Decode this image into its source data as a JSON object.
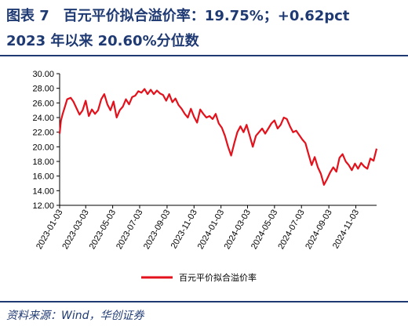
{
  "header": {
    "title_line1": "图表 7　百元平价拟合溢价率：19.75%；+0.62pct",
    "title_line2": "2023 年以来 20.60%分位数"
  },
  "footer": {
    "source": "资料来源：Wind，华创证券"
  },
  "colors": {
    "title": "#1f3a73",
    "line": "#e3111b"
  },
  "chart_data": {
    "type": "line",
    "title": "",
    "xlabel": "",
    "ylabel": "",
    "ylim": [
      12,
      30
    ],
    "yticks": [
      12,
      14,
      16,
      18,
      20,
      22,
      24,
      26,
      28,
      30
    ],
    "ytick_labels": [
      "12.00",
      "14.00",
      "16.00",
      "18.00",
      "20.00",
      "22.00",
      "24.00",
      "26.00",
      "28.00",
      "30.00"
    ],
    "xlim": [
      "2023-01-03",
      "2024-12-20"
    ],
    "xticks": [
      "2023-01-03",
      "2023-03-03",
      "2023-05-03",
      "2023-07-03",
      "2023-09-03",
      "2023-11-03",
      "2024-01-03",
      "2024-03-03",
      "2024-05-03",
      "2024-07-03",
      "2024-09-03",
      "2024-11-03"
    ],
    "grid": false,
    "legend": "bottom",
    "series": [
      {
        "name": "百元平价拟合溢价率",
        "x": [
          "2023-01-03",
          "2023-01-06",
          "2023-01-10",
          "2023-01-15",
          "2023-01-20",
          "2023-01-28",
          "2023-02-03",
          "2023-02-10",
          "2023-02-17",
          "2023-02-24",
          "2023-03-03",
          "2023-03-10",
          "2023-03-17",
          "2023-03-24",
          "2023-03-31",
          "2023-04-07",
          "2023-04-14",
          "2023-04-21",
          "2023-04-28",
          "2023-05-05",
          "2023-05-12",
          "2023-05-19",
          "2023-05-26",
          "2023-06-02",
          "2023-06-09",
          "2023-06-16",
          "2023-06-23",
          "2023-06-30",
          "2023-07-07",
          "2023-07-14",
          "2023-07-21",
          "2023-07-28",
          "2023-08-04",
          "2023-08-11",
          "2023-08-18",
          "2023-08-25",
          "2023-09-01",
          "2023-09-08",
          "2023-09-15",
          "2023-09-22",
          "2023-09-29",
          "2023-10-06",
          "2023-10-13",
          "2023-10-20",
          "2023-10-27",
          "2023-11-03",
          "2023-11-10",
          "2023-11-17",
          "2023-11-24",
          "2023-12-01",
          "2023-12-08",
          "2023-12-15",
          "2023-12-22",
          "2023-12-29",
          "2024-01-05",
          "2024-01-12",
          "2024-01-19",
          "2024-01-26",
          "2024-02-02",
          "2024-02-09",
          "2024-02-16",
          "2024-02-23",
          "2024-03-01",
          "2024-03-08",
          "2024-03-15",
          "2024-03-22",
          "2024-03-29",
          "2024-04-05",
          "2024-04-12",
          "2024-04-19",
          "2024-04-26",
          "2024-05-03",
          "2024-05-10",
          "2024-05-17",
          "2024-05-24",
          "2024-05-31",
          "2024-06-07",
          "2024-06-14",
          "2024-06-21",
          "2024-06-28",
          "2024-07-05",
          "2024-07-12",
          "2024-07-19",
          "2024-07-26",
          "2024-08-02",
          "2024-08-09",
          "2024-08-16",
          "2024-08-23",
          "2024-08-30",
          "2024-09-06",
          "2024-09-13",
          "2024-09-20",
          "2024-09-27",
          "2024-10-04",
          "2024-10-11",
          "2024-10-18",
          "2024-10-25",
          "2024-11-01",
          "2024-11-08",
          "2024-11-15",
          "2024-11-22",
          "2024-11-29",
          "2024-12-06",
          "2024-12-13",
          "2024-12-20"
        ],
        "values": [
          21.8,
          23.6,
          24.5,
          25.5,
          26.5,
          26.7,
          26.2,
          25.3,
          24.4,
          25.0,
          26.3,
          24.2,
          25.1,
          24.5,
          25.0,
          26.5,
          27.2,
          25.8,
          25.0,
          26.2,
          24.0,
          25.0,
          25.5,
          26.5,
          25.8,
          26.8,
          27.0,
          27.6,
          27.4,
          27.9,
          27.2,
          27.8,
          27.2,
          27.7,
          27.3,
          27.1,
          26.3,
          27.2,
          26.1,
          26.6,
          25.7,
          25.2,
          24.5,
          24.0,
          25.2,
          24.1,
          23.3,
          25.1,
          24.5,
          24.0,
          24.2,
          23.8,
          24.5,
          23.2,
          22.6,
          21.5,
          20.0,
          18.8,
          20.5,
          22.0,
          22.8,
          22.0,
          23.0,
          21.5,
          20.0,
          21.5,
          22.0,
          22.5,
          21.8,
          22.5,
          23.2,
          23.6,
          22.5,
          23.0,
          24.0,
          23.8,
          22.8,
          22.0,
          22.2,
          21.6,
          21.0,
          20.5,
          19.0,
          17.5,
          18.6,
          17.2,
          16.3,
          14.8,
          15.6,
          16.5,
          17.2,
          16.6,
          18.5,
          19.0,
          18.0,
          17.5,
          16.8,
          17.7,
          17.0,
          17.8,
          17.3,
          17.0,
          18.4,
          18.1,
          19.75
        ]
      }
    ]
  }
}
